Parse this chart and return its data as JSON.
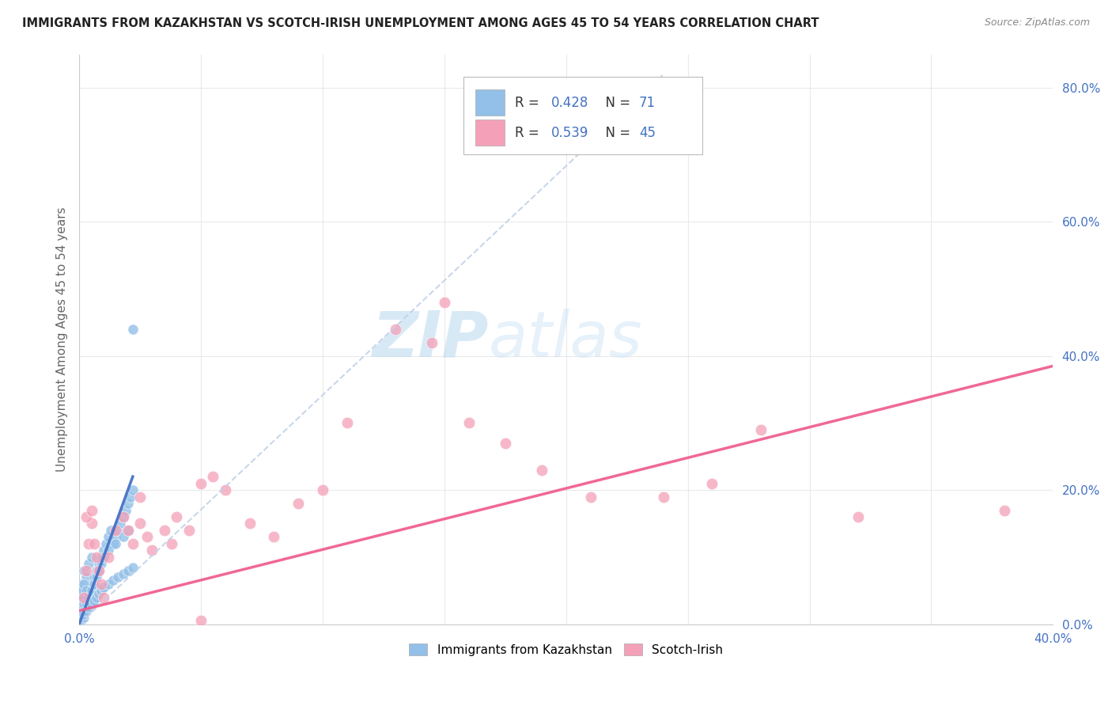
{
  "title": "IMMIGRANTS FROM KAZAKHSTAN VS SCOTCH-IRISH UNEMPLOYMENT AMONG AGES 45 TO 54 YEARS CORRELATION CHART",
  "source": "Source: ZipAtlas.com",
  "ylabel": "Unemployment Among Ages 45 to 54 years",
  "legend1_R": "0.428",
  "legend1_N": "71",
  "legend2_R": "0.539",
  "legend2_N": "45",
  "watermark_zip": "ZIP",
  "watermark_atlas": "atlas",
  "blue_color": "#92c0e8",
  "pink_color": "#f4a0b8",
  "blue_line_color": "#4472c4",
  "pink_line_color": "#f06090",
  "dashed_line_color": "#c0d0e8",
  "xlim": [
    0,
    0.4
  ],
  "ylim": [
    0,
    0.85
  ],
  "yticks": [
    0.0,
    0.2,
    0.4,
    0.6,
    0.8
  ],
  "ytick_labels": [
    "0.0%",
    "20.0%",
    "40.0%",
    "60.0%",
    "80.0%"
  ],
  "xticks": [
    0.0,
    0.05,
    0.1,
    0.15,
    0.2,
    0.25,
    0.3,
    0.35,
    0.4
  ],
  "xtick_labels": [
    "0.0%",
    "",
    "",
    "",
    "",
    "",
    "",
    "",
    "40.0%"
  ],
  "blue_scatter_x": [
    0.001,
    0.001,
    0.001,
    0.002,
    0.002,
    0.002,
    0.003,
    0.003,
    0.004,
    0.004,
    0.005,
    0.005,
    0.006,
    0.007,
    0.008,
    0.009,
    0.01,
    0.011,
    0.012,
    0.013,
    0.014,
    0.015,
    0.016,
    0.017,
    0.018,
    0.019,
    0.02,
    0.021,
    0.022,
    0.001,
    0.001,
    0.001,
    0.001,
    0.001,
    0.002,
    0.002,
    0.002,
    0.003,
    0.003,
    0.004,
    0.005,
    0.006,
    0.007,
    0.008,
    0.009,
    0.01,
    0.012,
    0.015,
    0.018,
    0.02,
    0.001,
    0.001,
    0.001,
    0.001,
    0.002,
    0.002,
    0.003,
    0.004,
    0.005,
    0.006,
    0.007,
    0.008,
    0.009,
    0.01,
    0.012,
    0.014,
    0.016,
    0.018,
    0.02,
    0.022,
    0.022
  ],
  "blue_scatter_y": [
    0.02,
    0.04,
    0.06,
    0.03,
    0.05,
    0.08,
    0.04,
    0.07,
    0.05,
    0.09,
    0.06,
    0.1,
    0.07,
    0.08,
    0.09,
    0.1,
    0.11,
    0.12,
    0.13,
    0.14,
    0.12,
    0.13,
    0.14,
    0.15,
    0.16,
    0.17,
    0.18,
    0.19,
    0.2,
    0.01,
    0.02,
    0.03,
    0.04,
    0.05,
    0.02,
    0.03,
    0.06,
    0.03,
    0.05,
    0.04,
    0.05,
    0.06,
    0.07,
    0.08,
    0.09,
    0.1,
    0.11,
    0.12,
    0.13,
    0.14,
    0.005,
    0.008,
    0.012,
    0.015,
    0.01,
    0.015,
    0.02,
    0.025,
    0.03,
    0.035,
    0.04,
    0.045,
    0.05,
    0.055,
    0.06,
    0.065,
    0.07,
    0.075,
    0.08,
    0.085,
    0.44
  ],
  "pink_scatter_x": [
    0.002,
    0.003,
    0.004,
    0.005,
    0.006,
    0.007,
    0.008,
    0.009,
    0.01,
    0.012,
    0.015,
    0.018,
    0.02,
    0.022,
    0.025,
    0.028,
    0.03,
    0.035,
    0.038,
    0.04,
    0.045,
    0.05,
    0.055,
    0.06,
    0.07,
    0.08,
    0.09,
    0.1,
    0.11,
    0.13,
    0.145,
    0.16,
    0.175,
    0.19,
    0.21,
    0.24,
    0.26,
    0.28,
    0.32,
    0.38,
    0.003,
    0.005,
    0.025,
    0.05,
    0.15
  ],
  "pink_scatter_y": [
    0.04,
    0.08,
    0.12,
    0.15,
    0.12,
    0.1,
    0.08,
    0.06,
    0.04,
    0.1,
    0.14,
    0.16,
    0.14,
    0.12,
    0.15,
    0.13,
    0.11,
    0.14,
    0.12,
    0.16,
    0.14,
    0.21,
    0.22,
    0.2,
    0.15,
    0.13,
    0.18,
    0.2,
    0.3,
    0.44,
    0.42,
    0.3,
    0.27,
    0.23,
    0.19,
    0.19,
    0.21,
    0.29,
    0.16,
    0.17,
    0.16,
    0.17,
    0.19,
    0.005,
    0.48
  ],
  "pink_line_x": [
    0.0,
    0.4
  ],
  "pink_line_y": [
    0.02,
    0.385
  ],
  "blue_solid_line_x": [
    0.0,
    0.022
  ],
  "blue_solid_line_y": [
    0.0,
    0.22
  ],
  "blue_dashed_line_x": [
    0.0,
    0.24
  ],
  "blue_dashed_line_y": [
    0.0,
    0.82
  ]
}
